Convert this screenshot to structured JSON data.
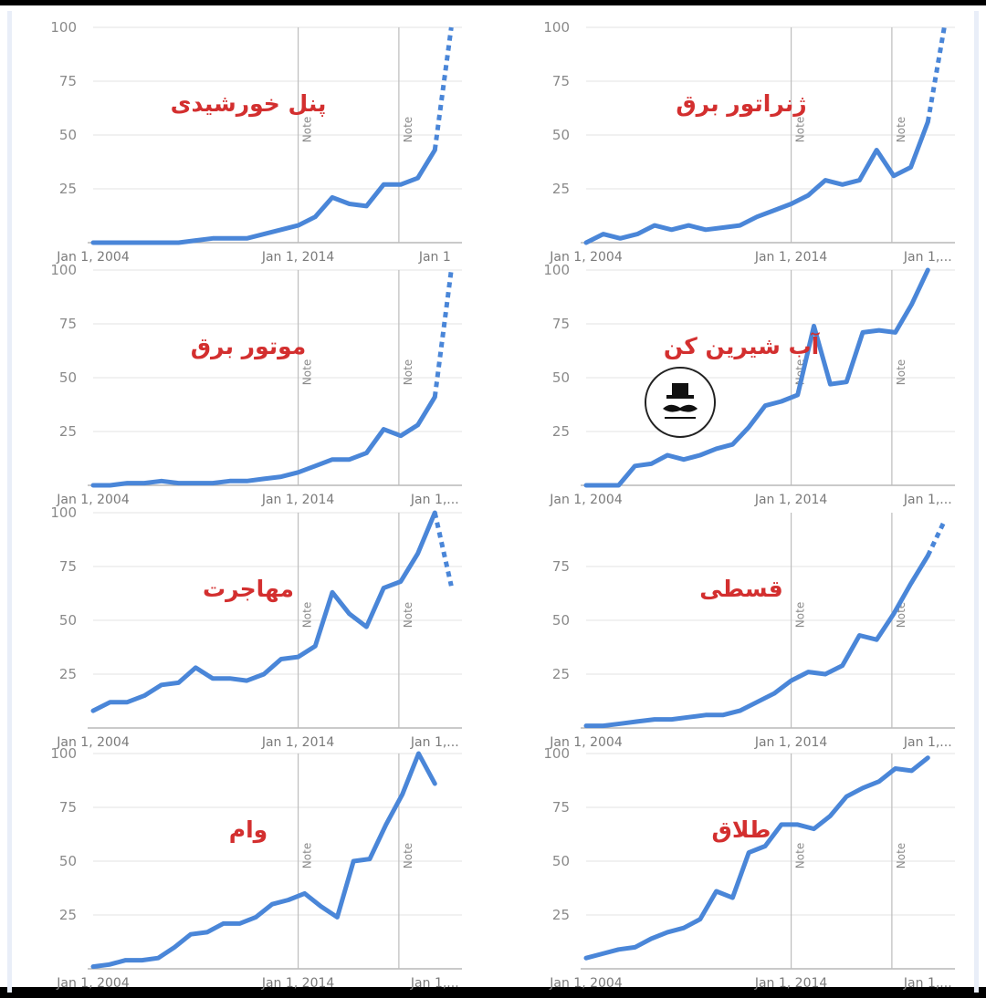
{
  "colors": {
    "line": "#4a86d8",
    "title": "#d32f2f"
  },
  "logo_icon": "hat-mustache-logo",
  "x_tick_labels": [
    "Jan 1, 2004",
    "Jan 1, 2014",
    "Jan 1,..."
  ],
  "note_label": "Note",
  "chart_data": [
    {
      "type": "line",
      "title": "پنل خورشیدی",
      "x_ticks": [
        "Jan 1, 2004",
        "Jan 1, 2014",
        "Jan 1"
      ],
      "y_ticks": [
        25,
        50,
        75,
        100
      ],
      "ylim": [
        0,
        100
      ],
      "notes": [
        "Note",
        "Note"
      ],
      "series": [
        {
          "values": [
            0,
            0,
            0,
            0,
            0,
            0,
            1,
            2,
            2,
            2,
            4,
            6,
            8,
            12,
            21,
            18,
            17,
            27,
            27,
            30,
            43
          ]
        }
      ],
      "forecast": [
        43,
        100
      ]
    },
    {
      "type": "line",
      "title": "ژنراتور برق",
      "x_ticks": [
        "Jan 1, 2004",
        "Jan 1, 2014",
        "Jan 1,..."
      ],
      "y_ticks": [
        25,
        50,
        75,
        100
      ],
      "ylim": [
        0,
        100
      ],
      "notes": [
        "Note",
        "Note"
      ],
      "series": [
        {
          "values": [
            0,
            4,
            2,
            4,
            8,
            6,
            8,
            6,
            7,
            8,
            12,
            15,
            18,
            22,
            29,
            27,
            29,
            43,
            31,
            35,
            56
          ]
        }
      ],
      "forecast": [
        56,
        100
      ]
    },
    {
      "type": "line",
      "title": "موتور برق",
      "x_ticks": [
        "Jan 1, 2004",
        "Jan 1, 2014",
        "Jan 1,..."
      ],
      "y_ticks": [
        25,
        50,
        75,
        100
      ],
      "ylim": [
        0,
        100
      ],
      "notes": [
        "Note",
        "Note"
      ],
      "series": [
        {
          "values": [
            0,
            0,
            1,
            1,
            2,
            1,
            1,
            1,
            2,
            2,
            3,
            4,
            6,
            9,
            12,
            12,
            15,
            26,
            23,
            28,
            41
          ]
        }
      ],
      "forecast": [
        41,
        100
      ]
    },
    {
      "type": "line",
      "title": "آب شیرین کن",
      "x_ticks": [
        "Jan 1, 2004",
        "Jan 1, 2014",
        "Jan 1,..."
      ],
      "y_ticks": [
        25,
        50,
        75,
        100
      ],
      "ylim": [
        0,
        100
      ],
      "notes": [
        "Note",
        "Note"
      ],
      "series": [
        {
          "values": [
            0,
            0,
            0,
            9,
            10,
            14,
            12,
            14,
            17,
            19,
            27,
            37,
            39,
            42,
            74,
            47,
            48,
            71,
            72,
            71,
            84,
            100
          ]
        }
      ]
    },
    {
      "type": "line",
      "title": "مهاجرت",
      "x_ticks": [
        "Jan 1, 2004",
        "Jan 1, 2014",
        "Jan 1,..."
      ],
      "y_ticks": [
        25,
        50,
        75,
        100
      ],
      "ylim": [
        0,
        100
      ],
      "notes": [
        "Note",
        "Note"
      ],
      "series": [
        {
          "values": [
            8,
            12,
            12,
            15,
            20,
            21,
            28,
            23,
            23,
            22,
            25,
            32,
            33,
            38,
            63,
            53,
            47,
            65,
            68,
            81,
            100
          ]
        }
      ],
      "forecast": [
        100,
        66
      ]
    },
    {
      "type": "line",
      "title": "قسطی",
      "x_ticks": [
        "Jan 1, 2004",
        "Jan 1, 2014",
        "Jan 1,..."
      ],
      "y_ticks": [
        25,
        50,
        75
      ],
      "ylim": [
        0,
        100
      ],
      "notes": [
        "Note",
        "Note"
      ],
      "series": [
        {
          "values": [
            1,
            1,
            2,
            3,
            4,
            4,
            5,
            6,
            6,
            8,
            12,
            16,
            22,
            26,
            25,
            29,
            43,
            41,
            53,
            67,
            80
          ]
        }
      ],
      "forecast": [
        80,
        96
      ]
    },
    {
      "type": "line",
      "title": "وام",
      "x_ticks": [
        "Jan 1, 2004",
        "Jan 1, 2014",
        "Jan 1,..."
      ],
      "y_ticks": [
        25,
        50,
        75,
        100
      ],
      "ylim": [
        0,
        100
      ],
      "notes": [
        "Note",
        "Note"
      ],
      "series": [
        {
          "values": [
            1,
            2,
            4,
            4,
            5,
            10,
            16,
            17,
            21,
            21,
            24,
            30,
            32,
            35,
            29,
            24,
            50,
            51,
            67,
            81,
            100,
            86
          ]
        }
      ]
    },
    {
      "type": "line",
      "title": "طلاق",
      "x_ticks": [
        "Jan 1, 2004",
        "Jan 1, 2014",
        "Jan 1,..."
      ],
      "y_ticks": [
        25,
        50,
        75,
        100
      ],
      "ylim": [
        0,
        100
      ],
      "notes": [
        "Note",
        "Note"
      ],
      "series": [
        {
          "values": [
            5,
            7,
            9,
            10,
            14,
            17,
            19,
            23,
            36,
            33,
            54,
            57,
            67,
            67,
            65,
            71,
            80,
            84,
            87,
            93,
            92,
            98
          ]
        }
      ]
    }
  ]
}
